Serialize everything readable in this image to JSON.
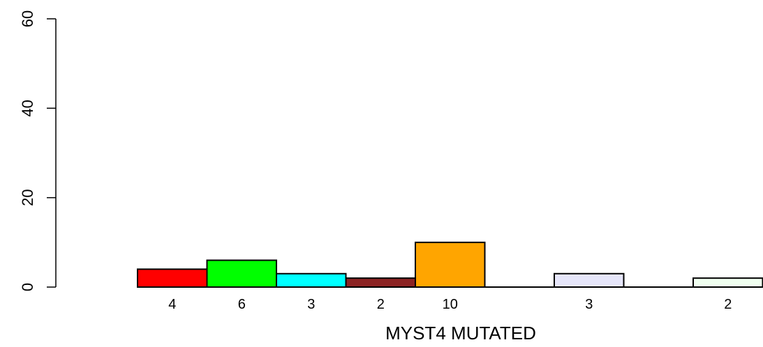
{
  "chart_data": {
    "type": "bar",
    "xlabel": "MYST4 MUTATED",
    "ylabel": "",
    "ylim": [
      0,
      60
    ],
    "yticks": [
      0,
      20,
      40,
      60
    ],
    "grid": false,
    "bars": [
      {
        "value": 4,
        "label": "4",
        "color": "#ff0000"
      },
      {
        "value": 6,
        "label": "6",
        "color": "#00ff00"
      },
      {
        "value": 3,
        "label": "3",
        "color": "#00ffff"
      },
      {
        "value": 2,
        "label": "2",
        "color": "#8b2323"
      },
      {
        "value": 10,
        "label": "10",
        "color": "#ffa500"
      },
      {
        "value": 0,
        "label": "",
        "color": "#ffffff"
      },
      {
        "value": 3,
        "label": "3",
        "color": "#e6e6fa"
      },
      {
        "value": 0,
        "label": "",
        "color": "#ffffff"
      },
      {
        "value": 2,
        "label": "2",
        "color": "#f0fff0"
      }
    ]
  }
}
